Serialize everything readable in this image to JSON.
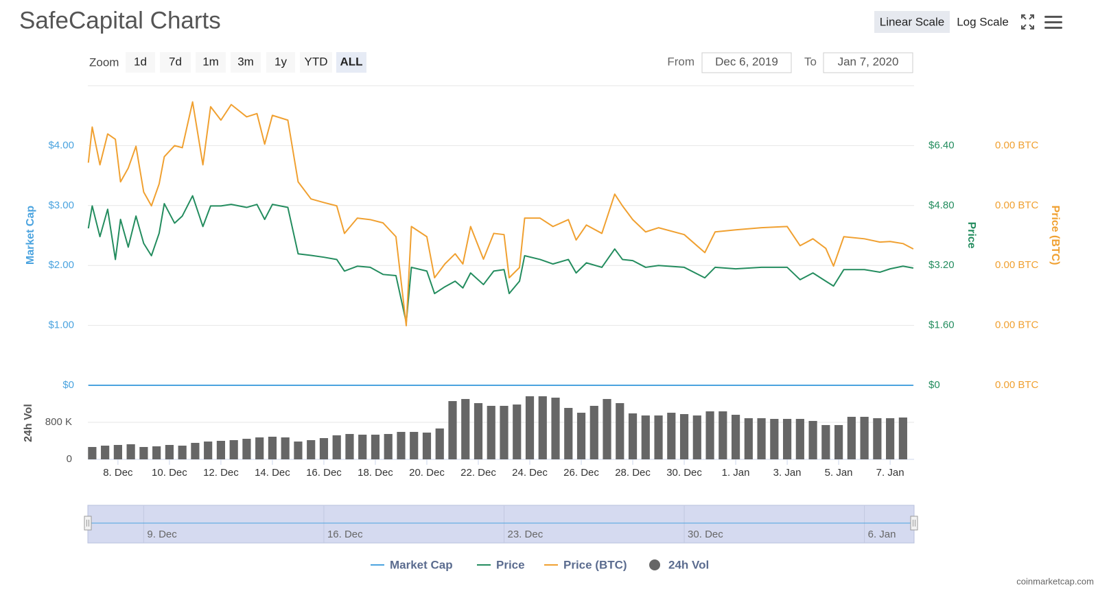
{
  "header": {
    "title": "SafeCapital Charts",
    "scale_buttons": [
      "Linear Scale",
      "Log Scale"
    ],
    "active_scale": 0
  },
  "zoom": {
    "label": "Zoom",
    "options": [
      "1d",
      "7d",
      "1m",
      "3m",
      "1y",
      "YTD",
      "ALL"
    ],
    "active": 6
  },
  "range": {
    "from_label": "From",
    "from": "Dec 6, 2019",
    "to_label": "To",
    "to": "Jan 7, 2020"
  },
  "credit": "coinmarketcap.com",
  "chart_data": {
    "type": "line",
    "ylabel": "Market Cap",
    "y2label": "Price",
    "y3label": "Price (BTC)",
    "vol_ylabel": "24h Vol",
    "xlim": [
      0.83,
      32.93
    ],
    "xticks": [
      {
        "value": 2,
        "label": "8. Dec"
      },
      {
        "value": 4,
        "label": "10. Dec"
      },
      {
        "value": 6,
        "label": "12. Dec"
      },
      {
        "value": 8,
        "label": "14. Dec"
      },
      {
        "value": 10,
        "label": "16. Dec"
      },
      {
        "value": 12,
        "label": "18. Dec"
      },
      {
        "value": 14,
        "label": "20. Dec"
      },
      {
        "value": 16,
        "label": "22. Dec"
      },
      {
        "value": 18,
        "label": "24. Dec"
      },
      {
        "value": 20,
        "label": "26. Dec"
      },
      {
        "value": 22,
        "label": "28. Dec"
      },
      {
        "value": 24,
        "label": "30. Dec"
      },
      {
        "value": 26,
        "label": "1. Jan"
      },
      {
        "value": 28,
        "label": "3. Jan"
      },
      {
        "value": 30,
        "label": "5. Jan"
      },
      {
        "value": 32,
        "label": "7. Jan"
      }
    ],
    "navigator_xticks": [
      {
        "value": 3,
        "label": "9. Dec"
      },
      {
        "value": 10,
        "label": "16. Dec"
      },
      {
        "value": 17,
        "label": "23. Dec"
      },
      {
        "value": 24,
        "label": "30. Dec"
      },
      {
        "value": 31,
        "label": "6. Jan"
      }
    ],
    "ylim": [
      0,
      5
    ],
    "yticks": [
      {
        "value": 0,
        "label": "$0"
      },
      {
        "value": 1,
        "label": "$1.00"
      },
      {
        "value": 2,
        "label": "$2.00"
      },
      {
        "value": 3,
        "label": "$3.00"
      },
      {
        "value": 4,
        "label": "$4.00"
      }
    ],
    "y2lim": [
      0,
      8
    ],
    "y2ticks": [
      {
        "value": 0,
        "label": "$0"
      },
      {
        "value": 1.6,
        "label": "$1.60"
      },
      {
        "value": 3.2,
        "label": "$3.20"
      },
      {
        "value": 4.8,
        "label": "$4.80"
      },
      {
        "value": 6.4,
        "label": "$6.40"
      }
    ],
    "y3lim": [
      0,
      0.001
    ],
    "y3ticks": [
      {
        "value": 0,
        "label": "0.00 BTC"
      },
      {
        "value": 0.0002,
        "label": "0.00 BTC"
      },
      {
        "value": 0.0004,
        "label": "0.00 BTC"
      },
      {
        "value": 0.0006,
        "label": "0.00 BTC"
      },
      {
        "value": 0.0008,
        "label": "0.00 BTC"
      }
    ],
    "vol_ylim": [
      0,
      1600000
    ],
    "vol_yticks": [
      0,
      {
        "value": 800000,
        "label": "800 K"
      }
    ],
    "grid": true,
    "x": [
      0.85,
      1.0,
      1.3,
      1.6,
      1.9,
      2.1,
      2.4,
      2.7,
      3.0,
      3.3,
      3.6,
      3.8,
      4.2,
      4.5,
      4.9,
      5.3,
      5.6,
      6.0,
      6.4,
      7.0,
      7.4,
      7.7,
      8.0,
      8.6,
      9.0,
      9.5,
      10.0,
      10.5,
      10.8,
      11.3,
      11.8,
      12.3,
      12.8,
      13.2,
      13.4,
      14.0,
      14.3,
      14.7,
      15.1,
      15.4,
      15.7,
      16.2,
      16.6,
      17.0,
      17.2,
      17.6,
      17.8,
      18.4,
      18.9,
      19.5,
      19.8,
      20.2,
      20.8,
      21.3,
      21.6,
      22.0,
      22.5,
      23.0,
      24.0,
      24.8,
      25.2,
      26.0,
      27.0,
      28.0,
      28.5,
      29.0,
      29.5,
      29.8,
      30.2,
      31.0,
      31.6,
      32.0,
      32.5,
      32.9
    ],
    "series": [
      {
        "name": "Market Cap",
        "color": "#4aa3df",
        "axis": "y",
        "values": [
          0,
          0,
          0,
          0,
          0,
          0,
          0,
          0,
          0,
          0,
          0,
          0,
          0,
          0,
          0,
          0,
          0,
          0,
          0,
          0,
          0,
          0,
          0,
          0,
          0,
          0,
          0,
          0,
          0,
          0,
          0,
          0,
          0,
          0,
          0,
          0,
          0,
          0,
          0,
          0,
          0,
          0,
          0,
          0,
          0,
          0,
          0,
          0,
          0,
          0,
          0,
          0,
          0,
          0,
          0,
          0,
          0,
          0,
          0,
          0,
          0,
          0,
          0,
          0,
          0,
          0,
          0,
          0,
          0,
          0,
          0,
          0,
          0,
          0
        ]
      },
      {
        "name": "Price",
        "color": "#238c5e",
        "axis": "y2",
        "values": [
          4.19,
          4.79,
          3.97,
          4.7,
          3.36,
          4.43,
          3.69,
          4.52,
          3.79,
          3.46,
          4.06,
          4.85,
          4.33,
          4.52,
          5.06,
          4.24,
          4.79,
          4.79,
          4.83,
          4.75,
          4.83,
          4.43,
          4.83,
          4.75,
          3.51,
          3.47,
          3.42,
          3.36,
          3.05,
          3.18,
          3.15,
          2.96,
          2.93,
          1.68,
          3.15,
          3.05,
          2.45,
          2.63,
          2.78,
          2.6,
          3.0,
          2.69,
          3.05,
          3.09,
          2.45,
          2.78,
          3.46,
          3.36,
          3.24,
          3.36,
          3.0,
          3.27,
          3.15,
          3.64,
          3.36,
          3.33,
          3.15,
          3.2,
          3.15,
          2.87,
          3.15,
          3.11,
          3.15,
          3.15,
          2.82,
          3.0,
          2.78,
          2.65,
          3.09,
          3.09,
          3.02,
          3.11,
          3.18,
          3.13
        ]
      },
      {
        "name": "Price (BTC)",
        "color": "#f0a030",
        "axis": "y3",
        "values": [
          0.000743,
          0.000862,
          0.000736,
          0.000839,
          0.000821,
          0.000679,
          0.000725,
          0.000798,
          0.000645,
          0.000599,
          0.000672,
          0.000763,
          0.0008,
          0.000793,
          0.000946,
          0.000736,
          0.00093,
          0.000885,
          0.000937,
          0.000896,
          0.000907,
          0.000805,
          0.000901,
          0.000885,
          0.000679,
          0.000622,
          0.00061,
          0.000599,
          0.000507,
          0.000558,
          0.000553,
          0.000542,
          0.000496,
          0.000199,
          0.00053,
          0.000496,
          0.000359,
          0.000405,
          0.000439,
          0.000405,
          0.00053,
          0.000421,
          0.000507,
          0.000503,
          0.000359,
          0.000393,
          0.000558,
          0.000558,
          0.00053,
          0.000553,
          0.000485,
          0.000535,
          0.000507,
          0.000638,
          0.000599,
          0.000553,
          0.000512,
          0.000526,
          0.000503,
          0.000443,
          0.000512,
          0.000519,
          0.000526,
          0.00053,
          0.000466,
          0.000489,
          0.000457,
          0.000398,
          0.000496,
          0.000489,
          0.000478,
          0.00048,
          0.000473,
          0.000455
        ]
      },
      {
        "name": "24h Vol",
        "color": "#666666",
        "type": "bar",
        "axis": "vol",
        "x": [
          1.0,
          1.5,
          2.0,
          2.5,
          3.0,
          3.5,
          4.0,
          4.5,
          5.0,
          5.5,
          6.0,
          6.5,
          7.0,
          7.5,
          8.0,
          8.5,
          9.0,
          9.5,
          10.0,
          10.5,
          11.0,
          11.5,
          12.0,
          12.5,
          13.0,
          13.5,
          14.0,
          14.5,
          15.0,
          15.5,
          16.0,
          16.5,
          17.0,
          17.5,
          18.0,
          18.5,
          19.0,
          19.5,
          20.0,
          20.5,
          21.0,
          21.5,
          22.0,
          22.5,
          23.0,
          23.5,
          24.0,
          24.5,
          25.0,
          25.5,
          26.0,
          26.5,
          27.0,
          27.5,
          28.0,
          28.5,
          29.0,
          29.5,
          30.0,
          30.5,
          31.0,
          31.5,
          32.0,
          32.5
        ],
        "values": [
          267000,
          296000,
          311000,
          326000,
          267000,
          281000,
          311000,
          296000,
          356000,
          385000,
          400000,
          415000,
          444000,
          474000,
          489000,
          474000,
          385000,
          415000,
          459000,
          519000,
          548000,
          533000,
          533000,
          548000,
          593000,
          593000,
          578000,
          667000,
          1259000,
          1304000,
          1215000,
          1156000,
          1156000,
          1185000,
          1363000,
          1363000,
          1333000,
          1111000,
          1007000,
          1156000,
          1304000,
          1215000,
          993000,
          948000,
          948000,
          1007000,
          978000,
          948000,
          1037000,
          1037000,
          963000,
          889000,
          889000,
          874000,
          874000,
          874000,
          830000,
          741000,
          741000,
          919000,
          919000,
          889000,
          889000,
          904000
        ]
      }
    ]
  }
}
